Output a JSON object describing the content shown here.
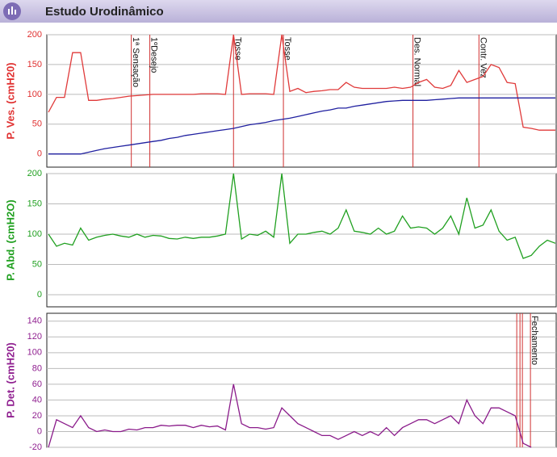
{
  "header": {
    "title": "Estudo Urodinâmico"
  },
  "chart_data": [
    {
      "type": "line",
      "ylabel": "P. Ves. (cmH20)",
      "ylim": [
        -22,
        200
      ],
      "yticks": [
        0,
        50,
        100,
        150,
        200
      ],
      "grid": true,
      "label_color": "#e03030",
      "series": [
        {
          "color": "#e03a3a",
          "values": [
            70,
            95,
            95,
            170,
            170,
            90,
            90,
            92,
            93,
            95,
            97,
            98,
            99,
            100,
            100,
            100,
            100,
            100,
            100,
            101,
            101,
            101,
            100,
            200,
            100,
            101,
            101,
            101,
            100,
            200,
            105,
            110,
            103,
            105,
            106,
            108,
            108,
            120,
            112,
            110,
            110,
            110,
            110,
            112,
            110,
            112,
            120,
            125,
            112,
            110,
            115,
            140,
            120,
            125,
            130,
            150,
            145,
            120,
            118,
            45,
            43,
            40,
            40,
            40
          ]
        },
        {
          "color": "#2020a0",
          "values": [
            0,
            0,
            0,
            0,
            0,
            3,
            6,
            9,
            11,
            13,
            15,
            17,
            19,
            21,
            23,
            26,
            28,
            31,
            33,
            35,
            37,
            39,
            41,
            43,
            46,
            49,
            51,
            53,
            56,
            58,
            60,
            63,
            66,
            69,
            72,
            74,
            77,
            77,
            80,
            82,
            84,
            86,
            88,
            89,
            90,
            90,
            90,
            90,
            91,
            92,
            93,
            94,
            94,
            94,
            94,
            94,
            94,
            94,
            94,
            94,
            94,
            94,
            94,
            94
          ]
        }
      ],
      "events": [
        {
          "label": "1ª Sensação",
          "x": 10.3
        },
        {
          "label": "1ºDesejo",
          "x": 12.6
        },
        {
          "label": "Tosse",
          "x": 23.0
        },
        {
          "label": "Tosse",
          "x": 29.2
        },
        {
          "label": "Des. Normal",
          "x": 45.3
        },
        {
          "label": "Contr. Vez",
          "x": 53.5
        }
      ]
    },
    {
      "type": "line",
      "ylabel": "P. Abd. (cmH2O)",
      "ylim": [
        -20,
        200
      ],
      "yticks": [
        0,
        50,
        100,
        150,
        200
      ],
      "grid": true,
      "label_color": "#20a020",
      "series": [
        {
          "color": "#20a020",
          "values": [
            100,
            80,
            85,
            82,
            110,
            90,
            95,
            98,
            100,
            97,
            95,
            100,
            95,
            98,
            97,
            93,
            92,
            95,
            93,
            95,
            95,
            97,
            100,
            200,
            92,
            100,
            98,
            105,
            95,
            200,
            85,
            100,
            100,
            103,
            105,
            100,
            110,
            140,
            105,
            103,
            100,
            110,
            100,
            105,
            130,
            110,
            112,
            110,
            100,
            110,
            130,
            100,
            160,
            110,
            115,
            140,
            105,
            90,
            95,
            60,
            65,
            80,
            90,
            85
          ]
        }
      ]
    },
    {
      "type": "line",
      "ylabel": "P. Det. (cmH20)",
      "ylim": [
        -20,
        150
      ],
      "yticks": [
        -20,
        0,
        20,
        40,
        60,
        80,
        100,
        120,
        140
      ],
      "grid": true,
      "label_color": "#902090",
      "series": [
        {
          "color": "#8a1a8a",
          "values": [
            -20,
            15,
            10,
            5,
            20,
            5,
            0,
            2,
            0,
            0,
            3,
            2,
            5,
            5,
            8,
            7,
            8,
            8,
            5,
            8,
            6,
            7,
            2,
            60,
            10,
            5,
            5,
            3,
            5,
            30,
            20,
            10,
            5,
            0,
            -5,
            -5,
            -10,
            -5,
            0,
            -5,
            0,
            -5,
            5,
            -5,
            5,
            10,
            15,
            15,
            10,
            15,
            20,
            10,
            40,
            20,
            10,
            30,
            30,
            25,
            20,
            -15,
            -20,
            null,
            null,
            null
          ]
        }
      ],
      "marker_lines": [
        58.2,
        58.6,
        58.9
      ],
      "events": [
        {
          "label": "Fechamento",
          "x": 59.9
        }
      ]
    }
  ]
}
